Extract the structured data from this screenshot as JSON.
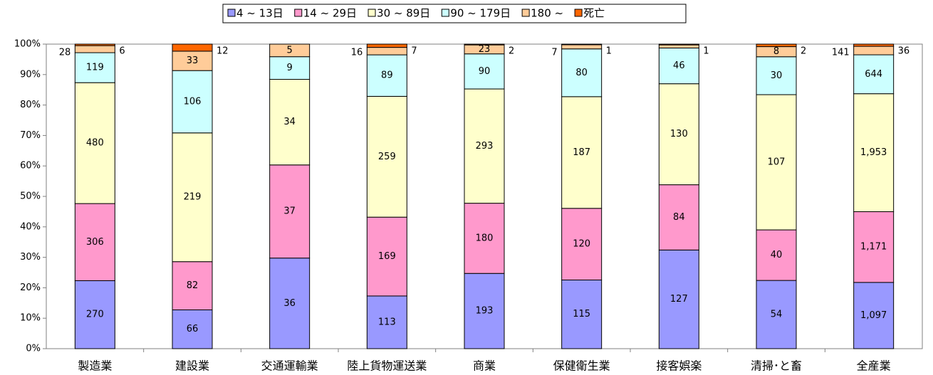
{
  "chart_data": {
    "type": "bar",
    "stack": "percent",
    "categories": [
      "製造業",
      "建設業",
      "交通運輸業",
      "陸上貨物運送業",
      "商業",
      "保健衛生業",
      "接客娯楽",
      "清掃･と畜",
      "全産業"
    ],
    "series": [
      {
        "name": "4 ~ 13日",
        "color": "#9999ff",
        "values": [
          270,
          66,
          36,
          113,
          193,
          115,
          127,
          54,
          1097
        ],
        "value_labels": [
          "270",
          "66",
          "36",
          "113",
          "193",
          "115",
          "127",
          "54",
          "1,097"
        ]
      },
      {
        "name": "14 ~ 29日",
        "color": "#ff99cc",
        "values": [
          306,
          82,
          37,
          169,
          180,
          120,
          84,
          40,
          1171
        ],
        "value_labels": [
          "306",
          "82",
          "37",
          "169",
          "180",
          "120",
          "84",
          "40",
          "1,171"
        ]
      },
      {
        "name": "30 ~ 89日",
        "color": "#ffffcc",
        "values": [
          480,
          219,
          34,
          259,
          293,
          187,
          130,
          107,
          1953
        ],
        "value_labels": [
          "480",
          "219",
          "34",
          "259",
          "293",
          "187",
          "130",
          "107",
          "1,953"
        ]
      },
      {
        "name": "90 ~ 179日",
        "color": "#ccffff",
        "values": [
          119,
          106,
          9,
          89,
          90,
          80,
          46,
          30,
          644
        ],
        "value_labels": [
          "119",
          "106",
          "9",
          "89",
          "90",
          "80",
          "46",
          "30",
          "644"
        ]
      },
      {
        "name": "180 ~",
        "color": "#ffcc99",
        "values": [
          28,
          33,
          5,
          16,
          23,
          7,
          4,
          8,
          141
        ],
        "value_labels": [
          "28",
          "33",
          "5",
          "16",
          "23",
          "7",
          null,
          "8",
          "141"
        ]
      },
      {
        "name": "死亡",
        "color": "#ff6600",
        "values": [
          6,
          12,
          0,
          7,
          2,
          1,
          1,
          2,
          36
        ],
        "value_labels": [
          "6",
          "12",
          null,
          "7",
          "2",
          "1",
          "1",
          "2",
          "36"
        ]
      }
    ],
    "ylim": [
      0,
      100
    ],
    "yticks": [
      {
        "value": 0,
        "label": "0%"
      },
      {
        "value": 10,
        "label": "10%"
      },
      {
        "value": 20,
        "label": "20%"
      },
      {
        "value": 30,
        "label": "30%"
      },
      {
        "value": 40,
        "label": "40%"
      },
      {
        "value": 50,
        "label": "50%"
      },
      {
        "value": 60,
        "label": "60%"
      },
      {
        "value": 70,
        "label": "70%"
      },
      {
        "value": 80,
        "label": "80%"
      },
      {
        "value": 90,
        "label": "90%"
      },
      {
        "value": 100,
        "label": "100%"
      }
    ],
    "grid": false
  }
}
